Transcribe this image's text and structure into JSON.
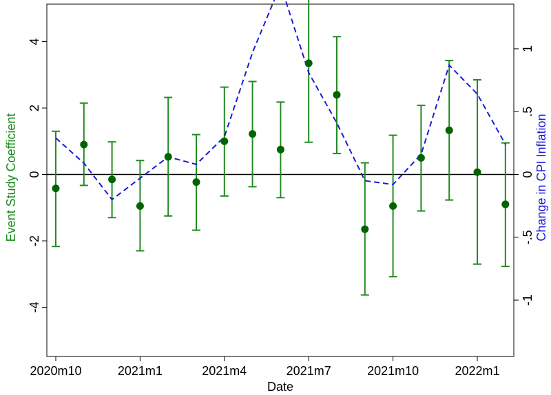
{
  "chart_data": {
    "type": "line",
    "xlabel": "Date",
    "ylabel_left": "Event Study Coefficient",
    "ylabel_right": "Change in CPI Inflation",
    "x_tick_labels": [
      "2020m10",
      "2021m1",
      "2021m4",
      "2021m7",
      "2021m10",
      "2022m1"
    ],
    "x_tick_index": [
      0,
      3,
      6,
      9,
      12,
      15
    ],
    "x_dates": [
      "2020m9",
      "2020m10",
      "2020m11",
      "2020m12",
      "2021m1",
      "2021m2",
      "2021m3",
      "2021m4",
      "2021m5",
      "2021m6",
      "2021m7",
      "2021m8",
      "2021m9",
      "2021m10",
      "2021m11",
      "2021m12",
      "2022m1"
    ],
    "ylim_left": [
      -4,
      6
    ],
    "yticks_left": [
      "-4",
      "-2",
      "0",
      "2",
      "4",
      "6"
    ],
    "ylim_right": [
      -1,
      1.5
    ],
    "yticks_right": [
      "-1",
      "-.5",
      "0",
      ".5",
      "1",
      "1.5"
    ],
    "series": [
      {
        "axis": "left",
        "kind": "point-with-ci",
        "color": "#006400",
        "ci_color": "#228b22",
        "estimate": [
          -0.42,
          0.9,
          -0.15,
          -0.95,
          0.53,
          -0.23,
          1.0,
          1.22,
          0.75,
          3.35,
          2.4,
          -1.65,
          -0.95,
          0.5,
          1.33,
          0.07,
          -0.9
        ],
        "lower": [
          -2.17,
          -0.33,
          -1.3,
          -2.3,
          -1.25,
          -1.68,
          -0.65,
          -0.37,
          -0.7,
          0.97,
          0.63,
          -3.63,
          -3.08,
          -1.1,
          -0.77,
          -2.7,
          -2.77
        ],
        "upper": [
          1.3,
          2.15,
          0.98,
          0.42,
          2.32,
          1.2,
          2.63,
          2.8,
          2.18,
          5.7,
          4.15,
          0.35,
          1.18,
          2.08,
          3.43,
          2.85,
          0.95
        ]
      },
      {
        "axis": "right",
        "kind": "dashed-line",
        "color": "#1a1adc",
        "values": [
          0.29,
          0.09,
          -0.2,
          -0.03,
          0.14,
          0.08,
          0.3,
          0.97,
          1.51,
          0.81,
          0.41,
          -0.05,
          -0.08,
          0.16,
          0.87,
          0.64,
          0.24
        ]
      }
    ],
    "zero_line": true,
    "grid": false,
    "legend": "none"
  }
}
